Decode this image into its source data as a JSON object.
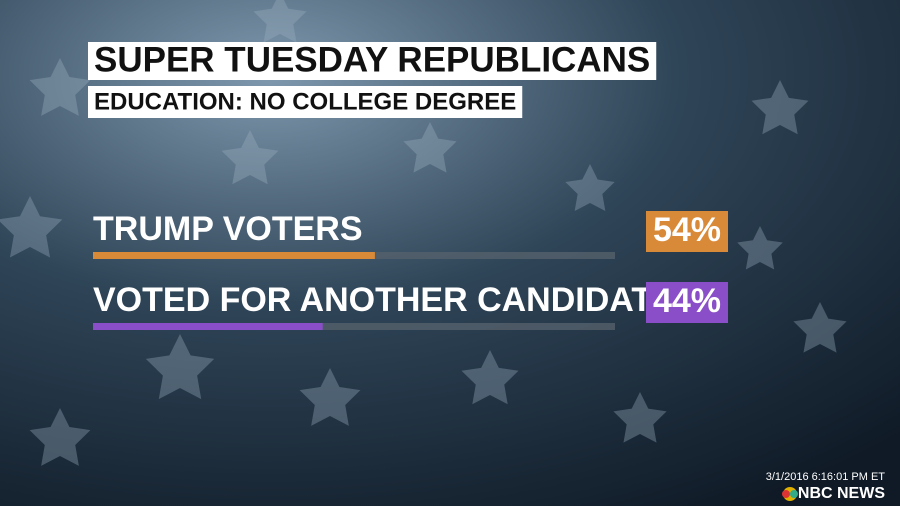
{
  "chart_data": {
    "type": "bar",
    "orientation": "horizontal",
    "title": "SUPER TUESDAY REPUBLICANS",
    "subtitle": "EDUCATION: NO COLLEGE DEGREE",
    "categories": [
      "TRUMP VOTERS",
      "VOTED FOR ANOTHER CANDIDATE"
    ],
    "values": [
      54,
      44
    ],
    "value_labels": [
      "54%",
      "44%"
    ],
    "colors": [
      "#d98a38",
      "#8a4fc8"
    ],
    "xlim": [
      0,
      100
    ]
  },
  "footer": {
    "timestamp": "3/1/2016 6:16:01 PM ET",
    "network": "NBC NEWS"
  }
}
